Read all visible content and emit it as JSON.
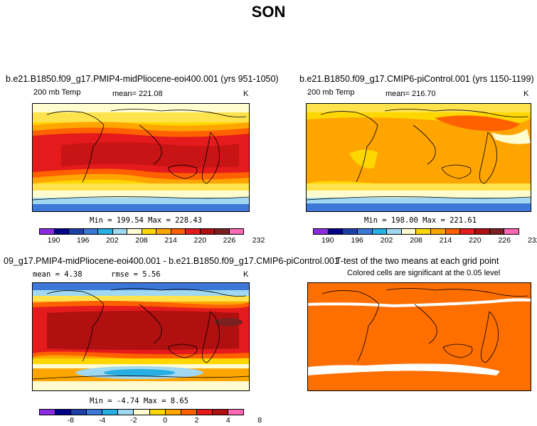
{
  "figure_title": "SON",
  "panels": {
    "top_left": {
      "title": "b.e21.B1850.f09_g17.PMIP4-midPliocene-eoi400.001 (yrs 951-1050)",
      "variable": "200 mb Temp",
      "mean_label": "mean= 221.08",
      "units": "K",
      "minmax": "Min = 199.54 Max = 228.43"
    },
    "top_right": {
      "title": "b.e21.B1850.f09_g17.CMIP6-piControl.001 (yrs 1150-1199)",
      "variable": "200 mb Temp",
      "mean_label": "mean= 216.70",
      "units": "K",
      "minmax": "Min = 198.00 Max = 221.61"
    },
    "bottom_left": {
      "title": "09_g17.PMIP4-midPliocene-eoi400.001 - b.e21.B1850.f09_g17.CMIP6-piControl.001",
      "mean_label": "mean =   4.38",
      "rmse_label": "rmse =   5.56",
      "units": "K",
      "minmax": "Min =  -4.74 Max =   8.65"
    },
    "bottom_right": {
      "title": "T-test of the two means at each grid point",
      "subtitle": "Colored cells are significant at the 0.05 level"
    }
  },
  "colorbars": {
    "temp_colors": [
      "#8a2be2",
      "#00008b",
      "#1c3fa8",
      "#3b78d8",
      "#27aee3",
      "#9fd8f0",
      "#fffdd0",
      "#ffd700",
      "#ffa500",
      "#ff6000",
      "#e41a1c",
      "#b01010",
      "#7b2020",
      "#ff69b4"
    ],
    "temp_ticks": [
      "190",
      "196",
      "202",
      "208",
      "214",
      "220",
      "226",
      "232"
    ],
    "diff_colors": [
      "#8a2be2",
      "#00008b",
      "#1c3fa8",
      "#3b78d8",
      "#27aee3",
      "#9fd8f0",
      "#fffdd0",
      "#ffd700",
      "#ffa500",
      "#ff6000",
      "#e41a1c",
      "#b01010",
      "#ff69b4"
    ],
    "diff_ticks": [
      "-8",
      "-4",
      "-2",
      "0",
      "2",
      "4",
      "8"
    ]
  },
  "ttest_color": "#ff6f00"
}
